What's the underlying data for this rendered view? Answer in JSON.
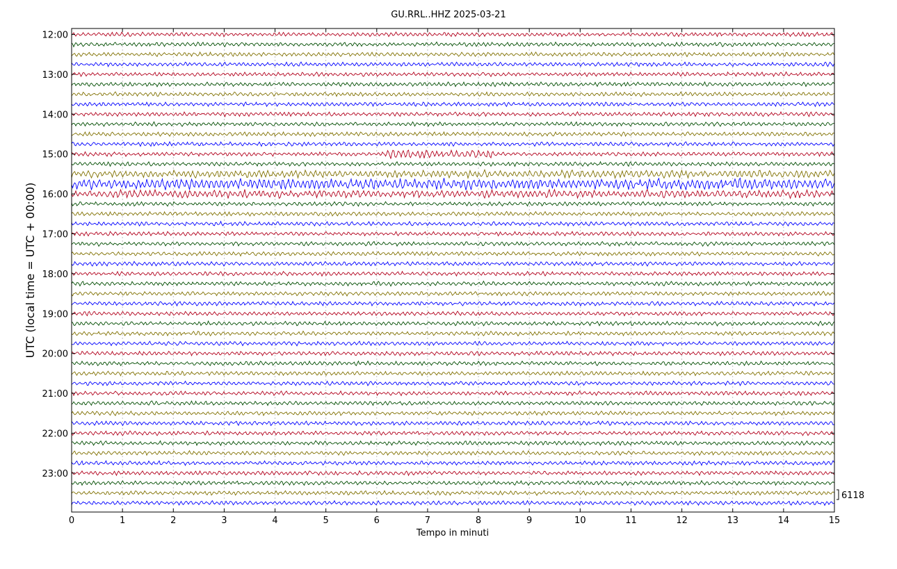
{
  "chart_data": {
    "type": "line",
    "title": "GU.RRL..HHZ 2025-03-21",
    "xlabel": "Tempo in minuti",
    "ylabel": "UTC (local time = UTC + 00:00)",
    "xlim": [
      0,
      15
    ],
    "x_ticks": [
      "0",
      "1",
      "2",
      "3",
      "4",
      "5",
      "6",
      "7",
      "8",
      "9",
      "10",
      "11",
      "12",
      "13",
      "14",
      "15"
    ],
    "hour_labels": [
      "12:00",
      "13:00",
      "14:00",
      "15:00",
      "16:00",
      "17:00",
      "18:00",
      "19:00",
      "20:00",
      "21:00",
      "22:00",
      "23:00"
    ],
    "traces_per_hour": 4,
    "trace_minutes": 15,
    "trace_colors": [
      "#b2001c",
      "#004c00",
      "#807000",
      "#0000ff"
    ],
    "scale_label": "6118",
    "grid": true,
    "events": [
      {
        "trace_start": "15:00",
        "x_start_min": 6.2,
        "x_end_min": 8.3,
        "relative_amplitude": 2.2
      },
      {
        "trace_start": "15:30",
        "x_start_min": 0,
        "x_end_min": 15,
        "relative_amplitude": 1.8
      },
      {
        "trace_start": "15:45",
        "x_start_min": 0,
        "x_end_min": 15,
        "relative_amplitude": 2.6
      },
      {
        "trace_start": "16:00",
        "x_start_min": 0,
        "x_end_min": 15,
        "relative_amplitude": 1.9
      }
    ]
  }
}
